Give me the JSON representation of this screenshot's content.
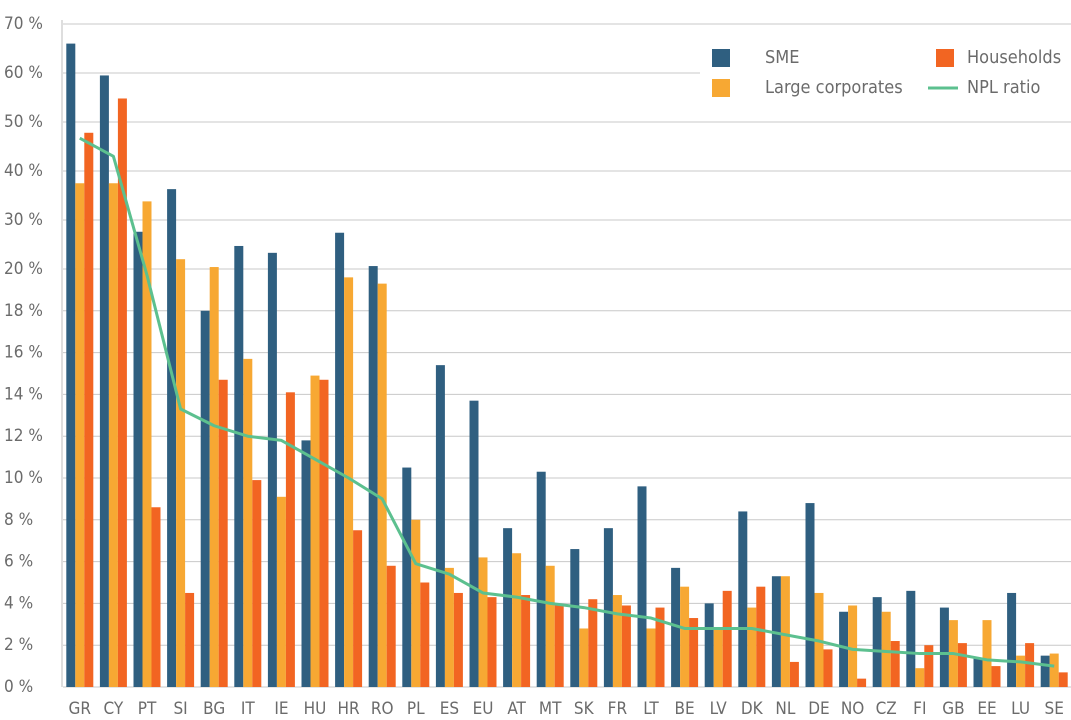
{
  "chart_data": {
    "type": "bar",
    "categories": [
      "GR",
      "CY",
      "PT",
      "SI",
      "BG",
      "IT",
      "IE",
      "HU",
      "HR",
      "RO",
      "PL",
      "ES",
      "EU",
      "AT",
      "MT",
      "SK",
      "FR",
      "LT",
      "BE",
      "LV",
      "DK",
      "NL",
      "DE",
      "NO",
      "CZ",
      "FI",
      "GB",
      "EE",
      "LU",
      "SE"
    ],
    "series": [
      {
        "name": "SME",
        "color": "#2f5f80",
        "values": [
          66,
          59.5,
          27.6,
          36.3,
          18,
          24.7,
          23.3,
          11.8,
          27.4,
          20.6,
          10.5,
          15.4,
          13.7,
          7.6,
          10.3,
          6.6,
          7.6,
          9.6,
          5.7,
          4.0,
          8.4,
          5.3,
          8.8,
          3.6,
          4.3,
          4.6,
          3.8,
          1.4,
          4.5,
          1.5
        ]
      },
      {
        "name": "Large corporates",
        "color": "#f7a833",
        "values": [
          37.5,
          37.5,
          33.8,
          22,
          20.4,
          15.7,
          9.1,
          14.9,
          19.6,
          19.3,
          8.0,
          5.7,
          6.2,
          6.4,
          5.8,
          2.8,
          4.4,
          2.8,
          4.8,
          2.8,
          3.8,
          5.3,
          4.5,
          3.9,
          3.6,
          0.9,
          3.2,
          3.2,
          1.5,
          1.6
        ]
      },
      {
        "name": "Households",
        "color": "#f26522",
        "values": [
          47.8,
          54.8,
          8.6,
          4.5,
          14.7,
          9.9,
          14.1,
          14.7,
          7.5,
          5.8,
          5.0,
          4.5,
          4.3,
          4.4,
          3.9,
          4.2,
          3.9,
          3.8,
          3.3,
          4.6,
          4.8,
          1.2,
          1.8,
          0.4,
          2.2,
          2.0,
          2.1,
          1.0,
          2.1,
          0.7
        ]
      },
      {
        "name": "NPL ratio",
        "type": "line",
        "color": "#5cc08f",
        "values": [
          46.7,
          43,
          19.7,
          13.3,
          12.5,
          12.0,
          11.8,
          10.9,
          10.0,
          9.0,
          5.9,
          5.4,
          4.5,
          4.3,
          4.0,
          3.8,
          3.5,
          3.3,
          2.8,
          2.8,
          2.8,
          2.5,
          2.2,
          1.8,
          1.7,
          1.6,
          1.6,
          1.3,
          1.2,
          1.0
        ]
      }
    ],
    "ylim": [
      0,
      70
    ],
    "ybreak": 20,
    "yticks": [
      {
        "value": 0,
        "label": "0 %"
      },
      {
        "value": 2,
        "label": "2 %"
      },
      {
        "value": 4,
        "label": "4 %"
      },
      {
        "value": 6,
        "label": "6 %"
      },
      {
        "value": 8,
        "label": "8 %"
      },
      {
        "value": 10,
        "label": "10 %"
      },
      {
        "value": 12,
        "label": "12 %"
      },
      {
        "value": 14,
        "label": "14 %"
      },
      {
        "value": 16,
        "label": "16 %"
      },
      {
        "value": 18,
        "label": "18 %"
      },
      {
        "value": 20,
        "label": "20 %"
      },
      {
        "value": 30,
        "label": "30 %"
      },
      {
        "value": 40,
        "label": "40 %"
      },
      {
        "value": 50,
        "label": "50 %"
      },
      {
        "value": 60,
        "label": "60 %"
      },
      {
        "value": 70,
        "label": "70 %"
      }
    ],
    "grid": true,
    "legend": "top-right"
  }
}
